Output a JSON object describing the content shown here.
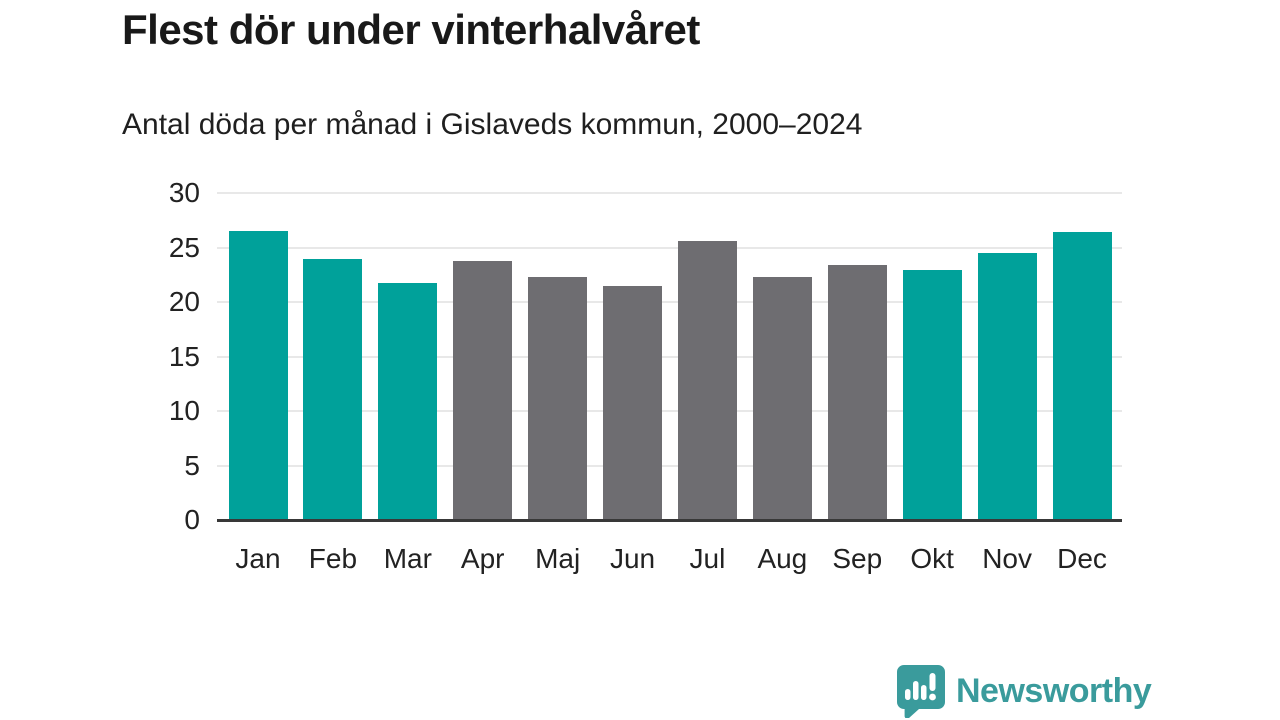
{
  "title": "Flest dör under vinterhalvåret",
  "subtitle": "Antal döda per månad i Gislaveds kommun, 2000–2024",
  "colors": {
    "winter_bar": "#00a19a",
    "summer_bar": "#6e6d71",
    "axis_line": "#383838",
    "gridline": "#e8e8e8",
    "title_text": "#191919",
    "tick_text": "#222222",
    "brand_teal": "#3a9b9c"
  },
  "chart_data": {
    "type": "bar",
    "categories": [
      "Jan",
      "Feb",
      "Mar",
      "Apr",
      "Maj",
      "Jun",
      "Jul",
      "Aug",
      "Sep",
      "Okt",
      "Nov",
      "Dec"
    ],
    "values": [
      26.5,
      23.9,
      21.7,
      23.8,
      22.3,
      21.5,
      25.6,
      22.3,
      23.4,
      22.9,
      24.5,
      26.4
    ],
    "bar_color_keys": [
      "winter_bar",
      "winter_bar",
      "winter_bar",
      "summer_bar",
      "summer_bar",
      "summer_bar",
      "summer_bar",
      "summer_bar",
      "summer_bar",
      "winter_bar",
      "winter_bar",
      "winter_bar"
    ],
    "title": "Flest dör under vinterhalvåret",
    "subtitle": "Antal döda per månad i Gislaveds kommun, 2000–2024",
    "xlabel": "",
    "ylabel": "",
    "ylim": [
      0,
      30
    ],
    "yticks": [
      0,
      5,
      10,
      15,
      20,
      25,
      30
    ],
    "grid": true,
    "legend_position": "none"
  },
  "footer": {
    "brand": "Newsworthy",
    "logo_icon": "speech-bubble-bar-chart-icon"
  }
}
